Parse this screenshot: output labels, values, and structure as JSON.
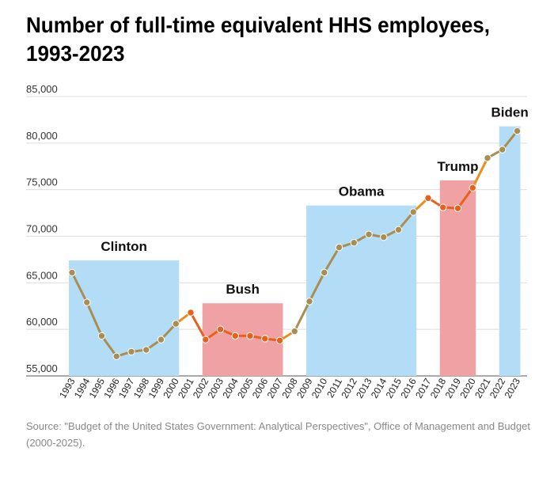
{
  "header": {
    "title": "Number of full-time equivalent HHS employees, 1993-2023"
  },
  "footer": {
    "source": "Source: \"Budget of the United States Government: Analytical Perspectives\",  Office of Management and Budget (2000-2025)."
  },
  "colors": {
    "democrat": "#b3dcf7",
    "republican": "#f0a1a3",
    "line_default": "#a88e52",
    "line_republican": "#e8611c",
    "line_transition": "#ea8f1e",
    "grid": "#dddddd"
  },
  "chart_data": {
    "type": "line",
    "title": "Number of full-time equivalent HHS employees, 1993-2023",
    "xlabel": "",
    "ylabel": "",
    "ylim": [
      55000,
      85000
    ],
    "yticks": [
      55000,
      60000,
      65000,
      70000,
      75000,
      80000,
      85000
    ],
    "ytick_labels": [
      "55,000",
      "60,000",
      "65,000",
      "70,000",
      "75,000",
      "80,000",
      "85,000"
    ],
    "grid": true,
    "categories": [
      "1993",
      "1994",
      "1995",
      "1996",
      "1997",
      "1998",
      "1999",
      "2000",
      "2001",
      "2002",
      "2003",
      "2004",
      "2005",
      "2006",
      "2007",
      "2008",
      "2009",
      "2010",
      "2011",
      "2012",
      "2013",
      "2014",
      "2015",
      "2016",
      "2017",
      "2018",
      "2019",
      "2020",
      "2021",
      "2022",
      "2023"
    ],
    "series": [
      {
        "name": "HHS full-time equivalent employees",
        "values": [
          66100,
          62900,
          59300,
          57100,
          57600,
          57800,
          58900,
          60600,
          61800,
          58900,
          60000,
          59300,
          59300,
          59000,
          58800,
          59800,
          63000,
          66100,
          68800,
          69300,
          70200,
          69900,
          70700,
          72600,
          74100,
          73100,
          73000,
          75200,
          78400,
          79300,
          81300
        ]
      }
    ],
    "presidencies": [
      {
        "name": "Clinton",
        "party": "democrat",
        "start": "1993",
        "end": "2000",
        "peak": 67400
      },
      {
        "name": "Bush",
        "party": "republican",
        "start": "2002",
        "end": "2007",
        "peak": 62800
      },
      {
        "name": "Obama",
        "party": "democrat",
        "start": "2009",
        "end": "2016",
        "peak": 73300
      },
      {
        "name": "Trump",
        "party": "republican",
        "start": "2018",
        "end": "2020",
        "peak": 76000
      },
      {
        "name": "Biden",
        "party": "democrat",
        "start": "2022",
        "end": "2023",
        "peak": 81800
      }
    ]
  }
}
